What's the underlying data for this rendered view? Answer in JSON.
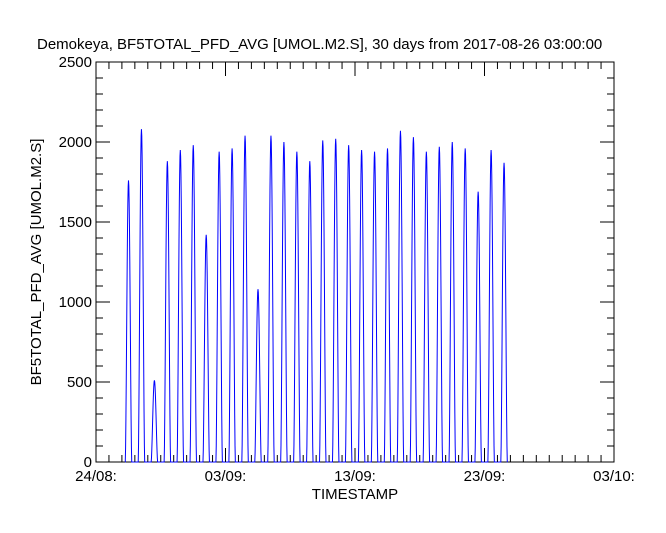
{
  "chart_data": {
    "type": "line",
    "title": "Demokeya, BF5TOTAL_PFD_AVG [UMOL.M2.S], 30 days from  2017-08-26 03:00:00",
    "xlabel": "TIMESTAMP",
    "ylabel": "BF5TOTAL_PFD_AVG [UMOL.M2.S]",
    "ylim": [
      0,
      2500
    ],
    "yticks": [
      0,
      500,
      1000,
      1500,
      2000,
      2500
    ],
    "xlim": [
      "2017-08-24",
      "2017-10-03"
    ],
    "xticks": [
      {
        "date": "2017-08-24",
        "label": "24/08:"
      },
      {
        "date": "2017-09-03",
        "label": "03/09:"
      },
      {
        "date": "2017-09-13",
        "label": "13/09:"
      },
      {
        "date": "2017-09-23",
        "label": "23/09:"
      },
      {
        "date": "2017-10-03",
        "label": "03/10:"
      }
    ],
    "grid": false,
    "series": [
      {
        "color": "#0000ff",
        "daily_peaks": [
          {
            "date": "2017-08-26",
            "peak": 1760
          },
          {
            "date": "2017-08-27",
            "peak": 2080
          },
          {
            "date": "2017-08-28",
            "peak": 510
          },
          {
            "date": "2017-08-29",
            "peak": 1880
          },
          {
            "date": "2017-08-30",
            "peak": 1950
          },
          {
            "date": "2017-08-31",
            "peak": 1980
          },
          {
            "date": "2017-09-01",
            "peak": 1420
          },
          {
            "date": "2017-09-02",
            "peak": 1940
          },
          {
            "date": "2017-09-03",
            "peak": 1960
          },
          {
            "date": "2017-09-04",
            "peak": 2040
          },
          {
            "date": "2017-09-05",
            "peak": 1080
          },
          {
            "date": "2017-09-06",
            "peak": 2040
          },
          {
            "date": "2017-09-07",
            "peak": 2000
          },
          {
            "date": "2017-09-08",
            "peak": 1940
          },
          {
            "date": "2017-09-09",
            "peak": 1880
          },
          {
            "date": "2017-09-10",
            "peak": 2010
          },
          {
            "date": "2017-09-11",
            "peak": 2020
          },
          {
            "date": "2017-09-12",
            "peak": 1980
          },
          {
            "date": "2017-09-13",
            "peak": 1950
          },
          {
            "date": "2017-09-14",
            "peak": 1940
          },
          {
            "date": "2017-09-15",
            "peak": 1960
          },
          {
            "date": "2017-09-16",
            "peak": 2070
          },
          {
            "date": "2017-09-17",
            "peak": 2030
          },
          {
            "date": "2017-09-18",
            "peak": 1940
          },
          {
            "date": "2017-09-19",
            "peak": 1970
          },
          {
            "date": "2017-09-20",
            "peak": 2000
          },
          {
            "date": "2017-09-21",
            "peak": 1960
          },
          {
            "date": "2017-09-22",
            "peak": 1690
          },
          {
            "date": "2017-09-23",
            "peak": 1950
          },
          {
            "date": "2017-09-24",
            "peak": 1870
          }
        ]
      }
    ]
  }
}
